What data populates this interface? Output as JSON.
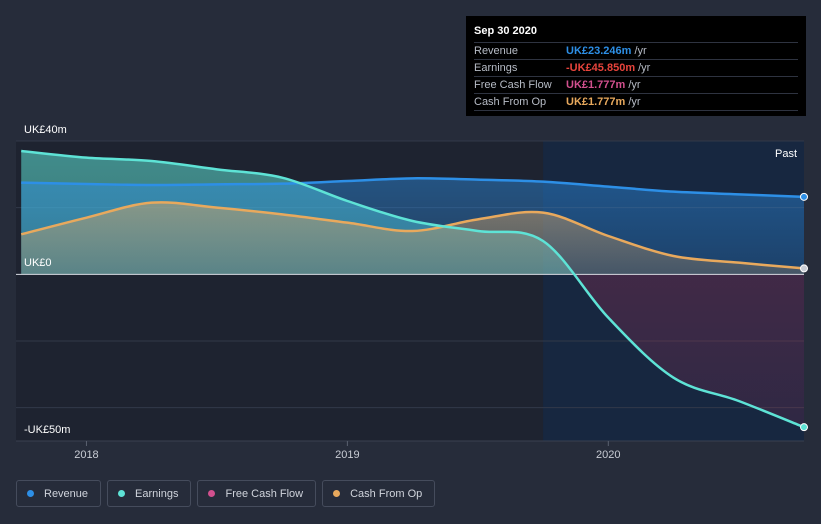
{
  "chart_data": {
    "type": "area",
    "title": "",
    "xlabel": "",
    "ylabel": "",
    "y_labels": {
      "top": "UK£40m",
      "zero": "UK£0",
      "bottom": "-UK£50m"
    },
    "ylim": [
      -50,
      40
    ],
    "x_range": [
      2017.73,
      2020.75
    ],
    "x_ticks": [
      {
        "value": 2018,
        "label": "2018"
      },
      {
        "value": 2019,
        "label": "2019"
      },
      {
        "value": 2020,
        "label": "2020"
      }
    ],
    "past_label": "Past",
    "past_start": 2019.75,
    "series": [
      {
        "name": "Earnings",
        "color": "#5ee3d6",
        "x": [
          2017.75,
          2018.0,
          2018.25,
          2018.5,
          2018.75,
          2019.0,
          2019.25,
          2019.5,
          2019.75,
          2020.0,
          2020.25,
          2020.5,
          2020.75
        ],
        "values": [
          37.0,
          35.0,
          34.0,
          31.5,
          29.0,
          22.0,
          16.0,
          13.0,
          10.0,
          -13.0,
          -31.0,
          -38.0,
          -45.85
        ]
      },
      {
        "name": "Revenue",
        "color": "#2d8fe6",
        "x": [
          2017.75,
          2018.0,
          2018.25,
          2018.5,
          2018.75,
          2019.0,
          2019.25,
          2019.5,
          2019.75,
          2020.0,
          2020.25,
          2020.5,
          2020.75
        ],
        "values": [
          27.5,
          27.1,
          26.8,
          27.0,
          27.2,
          28.0,
          28.8,
          28.4,
          27.8,
          26.3,
          24.8,
          24.0,
          23.246
        ]
      },
      {
        "name": "Cash From Op",
        "color": "#e8a95d",
        "x": [
          2017.75,
          2018.0,
          2018.25,
          2018.5,
          2018.75,
          2019.0,
          2019.25,
          2019.5,
          2019.75,
          2020.0,
          2020.25,
          2020.5,
          2020.75
        ],
        "values": [
          12.0,
          17.0,
          21.5,
          20.0,
          18.0,
          15.5,
          13.0,
          16.5,
          18.5,
          11.5,
          5.5,
          3.5,
          1.777
        ]
      },
      {
        "name": "Free Cash Flow",
        "color": "#d2508e",
        "x": [
          2020.75
        ],
        "values": [
          1.777
        ]
      }
    ]
  },
  "tooltip": {
    "date": "Sep 30 2020",
    "rows": [
      {
        "name": "Revenue",
        "value": "UK£23.246m",
        "unit": "/yr",
        "color": "#2d8fe6"
      },
      {
        "name": "Earnings",
        "value": "-UK£45.850m",
        "unit": "/yr",
        "color": "#e8443c"
      },
      {
        "name": "Free Cash Flow",
        "value": "UK£1.777m",
        "unit": "/yr",
        "color": "#d2508e"
      },
      {
        "name": "Cash From Op",
        "value": "UK£1.777m",
        "unit": "/yr",
        "color": "#e8a95d"
      }
    ]
  },
  "legend": [
    {
      "label": "Revenue",
      "color": "#2d8fe6"
    },
    {
      "label": "Earnings",
      "color": "#5ee3d6"
    },
    {
      "label": "Free Cash Flow",
      "color": "#d2508e"
    },
    {
      "label": "Cash From Op",
      "color": "#e8a95d"
    }
  ],
  "colors": {
    "background": "#262c3a",
    "plot_background": "#1e2330",
    "past_region": "#162a46"
  }
}
